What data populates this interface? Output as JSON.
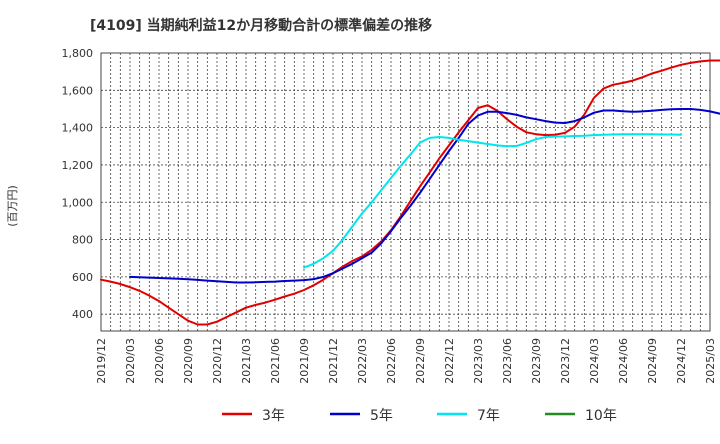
{
  "chart_data": {
    "type": "line",
    "title": "[4109]  当期純利益12か月移動合計の標準偏差の推移",
    "ylabel": "(百万円)",
    "xlabel": "",
    "ylim": [
      310,
      1800
    ],
    "yticks": [
      400,
      600,
      800,
      1000,
      1200,
      1400,
      1600,
      1800
    ],
    "ytick_labels": [
      "400",
      "600",
      "800",
      "1,000",
      "1,200",
      "1,400",
      "1,600",
      "1,800"
    ],
    "x_start": "2019-12",
    "x_end": "2025-03",
    "xtick_labels": [
      "2019/12",
      "2020/03",
      "2020/06",
      "2020/09",
      "2020/12",
      "2021/03",
      "2021/06",
      "2021/09",
      "2021/12",
      "2022/03",
      "2022/06",
      "2022/09",
      "2022/12",
      "2023/03",
      "2023/06",
      "2023/09",
      "2023/12",
      "2024/03",
      "2024/06",
      "2024/09",
      "2024/12",
      "2025/03"
    ],
    "grid": true,
    "legend_position": "bottom",
    "series": [
      {
        "name": "3年",
        "color": "#e00000",
        "start": "2019-12",
        "values": [
          585,
          575,
          562,
          545,
          525,
          500,
          470,
          435,
          400,
          365,
          345,
          345,
          360,
          385,
          410,
          435,
          450,
          462,
          478,
          495,
          510,
          530,
          555,
          585,
          620,
          655,
          685,
          710,
          745,
          790,
          850,
          925,
          1005,
          1085,
          1160,
          1235,
          1305,
          1375,
          1440,
          1505,
          1520,
          1490,
          1445,
          1405,
          1375,
          1365,
          1360,
          1362,
          1372,
          1405,
          1470,
          1560,
          1610,
          1630,
          1640,
          1652,
          1670,
          1690,
          1705,
          1722,
          1737,
          1747,
          1755,
          1760,
          1760,
          1758,
          1752
        ]
      },
      {
        "name": "5年",
        "color": "#0000cc",
        "start": "2020-03",
        "values": [
          600,
          598,
          596,
          594,
          592,
          590,
          587,
          584,
          580,
          577,
          573,
          570,
          570,
          571,
          573,
          575,
          578,
          580,
          583,
          588,
          600,
          620,
          645,
          670,
          700,
          730,
          780,
          845,
          915,
          980,
          1050,
          1125,
          1200,
          1275,
          1345,
          1420,
          1465,
          1485,
          1485,
          1478,
          1468,
          1455,
          1445,
          1435,
          1427,
          1425,
          1435,
          1455,
          1480,
          1492,
          1492,
          1488,
          1485,
          1487,
          1490,
          1495,
          1498,
          1500,
          1500,
          1495,
          1487,
          1475,
          1462,
          1448
        ]
      },
      {
        "name": "7年",
        "color": "#00e5ee",
        "start": "2021-09",
        "values": [
          650,
          670,
          700,
          740,
          800,
          870,
          940,
          1000,
          1065,
          1130,
          1195,
          1255,
          1320,
          1345,
          1350,
          1345,
          1335,
          1328,
          1320,
          1312,
          1305,
          1300,
          1302,
          1318,
          1338,
          1350,
          1352,
          1353,
          1355,
          1357,
          1360,
          1362,
          1363,
          1364,
          1365,
          1365,
          1364,
          1363,
          1363,
          1362
        ]
      },
      {
        "name": "10年",
        "color": "#228b22",
        "start": "2024-12",
        "values": []
      }
    ]
  }
}
